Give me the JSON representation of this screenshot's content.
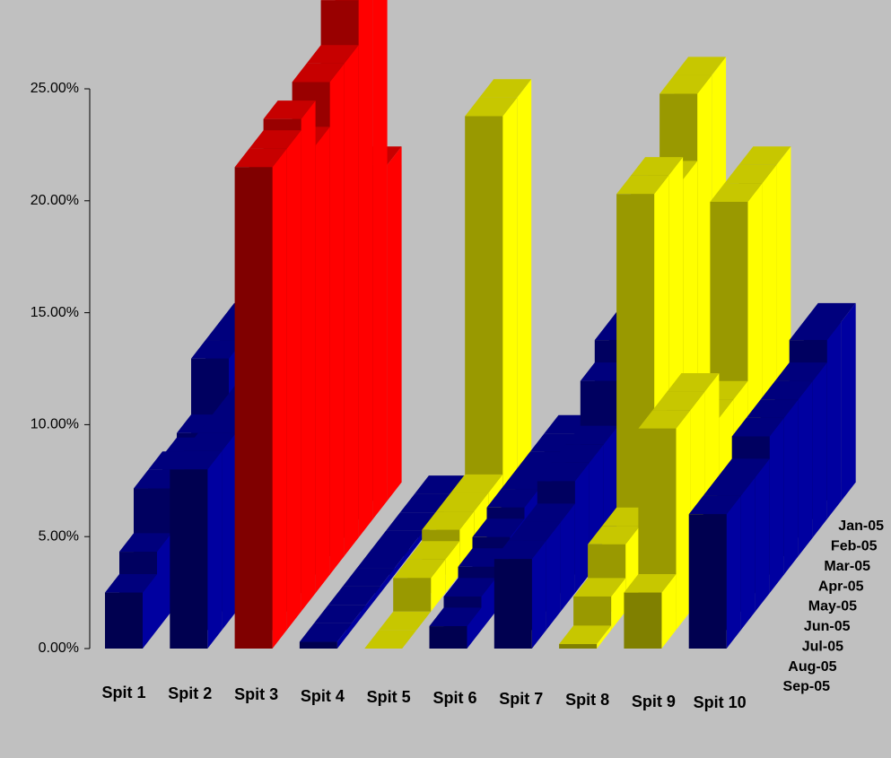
{
  "chart_data": {
    "type": "3d-ribbon",
    "categories": [
      "Spit 1",
      "Spit 2",
      "Spit 3",
      "Spit 4",
      "Spit 5",
      "Spit 6",
      "Spit 7",
      "Spit 8",
      "Spit 9",
      "Spit 10"
    ],
    "category_colors": [
      "#0000a0",
      "#0000a0",
      "#ff0000",
      "#0000a0",
      "#ffff00",
      "#0000a0",
      "#0000a0",
      "#ffff00",
      "#ffff00",
      "#0000a0"
    ],
    "series": [
      {
        "name": "Jan-05",
        "values": [
          8.0,
          8.0,
          15.0,
          0.3,
          18.0,
          3.0,
          8.0,
          19.0,
          15.0,
          8.0
        ]
      },
      {
        "name": "Feb-05",
        "values": [
          8.0,
          8.0,
          24.0,
          0.3,
          18.0,
          3.0,
          8.0,
          19.0,
          15.0,
          8.0
        ]
      },
      {
        "name": "Mar-05",
        "values": [
          8.0,
          8.0,
          24.0,
          0.3,
          2.0,
          3.0,
          7.0,
          16.0,
          15.0,
          7.0
        ]
      },
      {
        "name": "Apr-05",
        "values": [
          5.5,
          8.0,
          22.0,
          0.3,
          2.0,
          3.0,
          5.0,
          17.0,
          7.0,
          7.0
        ]
      },
      {
        "name": "May-05",
        "values": [
          5.3,
          8.0,
          22.0,
          0.3,
          2.0,
          3.0,
          5.0,
          17.0,
          7.0,
          7.0
        ]
      },
      {
        "name": "Jun-05",
        "values": [
          5.5,
          8.0,
          20.0,
          0.3,
          1.5,
          2.5,
          5.0,
          3.0,
          9.0,
          7.0
        ]
      },
      {
        "name": "Jul-05",
        "values": [
          5.5,
          8.0,
          22.0,
          0.3,
          1.5,
          2.0,
          4.0,
          3.0,
          9.0,
          6.0
        ]
      },
      {
        "name": "Aug-05",
        "values": [
          3.5,
          8.0,
          21.5,
          0.3,
          0.0,
          1.5,
          4.0,
          1.5,
          9.0,
          6.0
        ]
      },
      {
        "name": "Sep-05",
        "values": [
          2.5,
          8.0,
          21.5,
          0.3,
          0.0,
          1.0,
          4.0,
          0.2,
          2.5,
          6.0
        ]
      }
    ],
    "ylim": [
      0,
      25
    ],
    "yticks": [
      {
        "value": 0,
        "label": "0.00%"
      },
      {
        "value": 5,
        "label": "5.00%"
      },
      {
        "value": 10,
        "label": "10.00%"
      },
      {
        "value": 15,
        "label": "15.00%"
      },
      {
        "value": 20,
        "label": "20.00%"
      },
      {
        "value": 25,
        "label": "25.00%"
      }
    ]
  }
}
